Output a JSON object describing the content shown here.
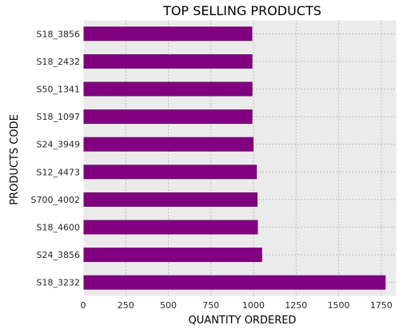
{
  "chart_data": {
    "type": "bar",
    "orientation": "horizontal",
    "title": "TOP SELLING PRODUCTS",
    "xlabel": "QUANTITY ORDERED",
    "ylabel": "PRODUCTS CODE",
    "categories": [
      "S18_3856",
      "S18_2432",
      "S50_1341",
      "S18_1097",
      "S24_3949",
      "S12_4473",
      "S700_4002",
      "S18_4600",
      "S24_3856",
      "S18_3232"
    ],
    "values": [
      991,
      992,
      992,
      992,
      998,
      1018,
      1022,
      1024,
      1049,
      1774
    ],
    "xlim": [
      0,
      1840
    ],
    "xticks": [
      0,
      250,
      500,
      750,
      1000,
      1250,
      1500,
      1750
    ],
    "grid": true,
    "bar_color": "#800080",
    "background_color": "#ebebeb",
    "grid_color": "#b0b0b0"
  }
}
